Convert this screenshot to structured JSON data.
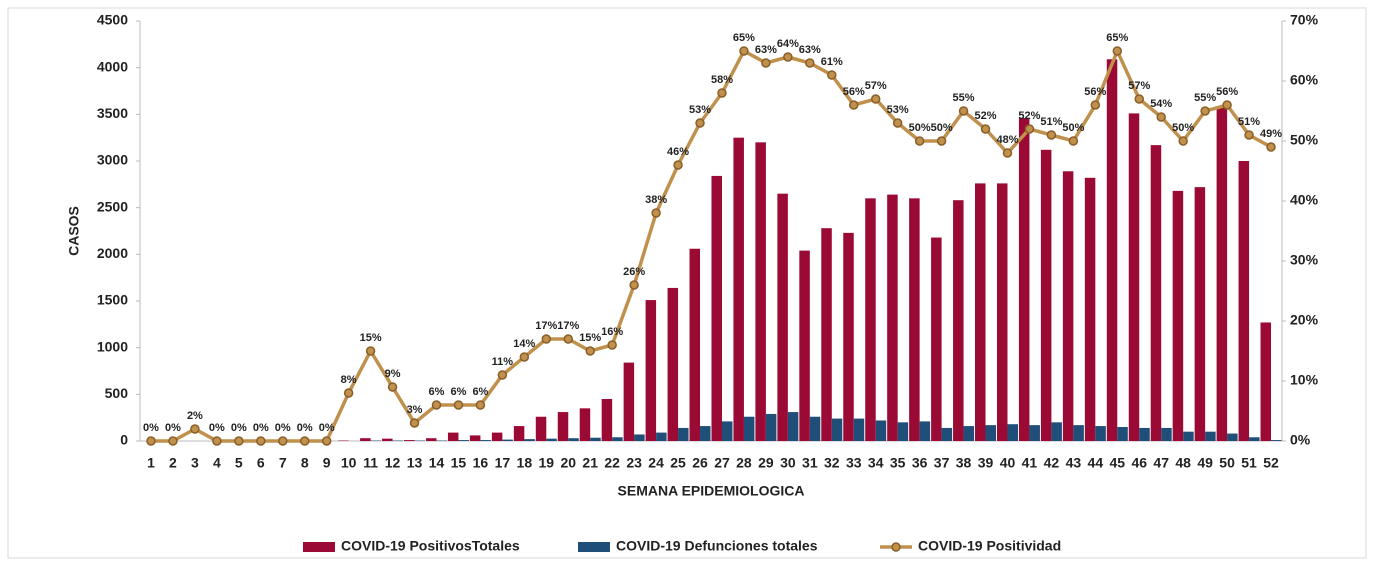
{
  "chart_data": {
    "type": "bar",
    "y_label": "CASOS",
    "x_label": "SEMANA EPIDEMIOLOGICA",
    "categories": [
      "1",
      "2",
      "3",
      "4",
      "5",
      "6",
      "7",
      "8",
      "9",
      "10",
      "11",
      "12",
      "13",
      "14",
      "15",
      "16",
      "17",
      "18",
      "19",
      "20",
      "21",
      "22",
      "23",
      "24",
      "25",
      "26",
      "27",
      "28",
      "29",
      "30",
      "31",
      "32",
      "33",
      "34",
      "35",
      "36",
      "37",
      "38",
      "39",
      "40",
      "41",
      "42",
      "43",
      "44",
      "45",
      "46",
      "47",
      "48",
      "49",
      "50",
      "51",
      "52"
    ],
    "series": [
      {
        "name": "COVID-19 PositivosTotales",
        "color": "#9b0a35",
        "values": [
          0,
          0,
          0,
          0,
          0,
          0,
          0,
          0,
          0,
          5,
          30,
          25,
          10,
          30,
          90,
          60,
          90,
          160,
          260,
          310,
          350,
          450,
          840,
          1510,
          1640,
          2060,
          2840,
          3250,
          3200,
          2650,
          2040,
          2280,
          2230,
          2600,
          2640,
          2600,
          2180,
          2580,
          2760,
          2760,
          3460,
          3120,
          2890,
          2820,
          4090,
          3510,
          3170,
          2680,
          2720,
          3570,
          3000,
          1270
        ]
      },
      {
        "name": "COVID-19 Defunciones totales",
        "color": "#1f4e79",
        "values": [
          0,
          0,
          0,
          0,
          0,
          0,
          0,
          0,
          0,
          0,
          5,
          5,
          5,
          5,
          10,
          10,
          15,
          20,
          25,
          30,
          35,
          40,
          70,
          90,
          140,
          160,
          210,
          260,
          290,
          310,
          260,
          240,
          240,
          220,
          200,
          210,
          140,
          160,
          170,
          180,
          170,
          200,
          170,
          160,
          150,
          140,
          140,
          100,
          100,
          80,
          40,
          10
        ]
      },
      {
        "name": "COVID-19 Positividad",
        "color": "#c0904d",
        "type": "line",
        "axis": "y2",
        "values": [
          0,
          0,
          2,
          0,
          0,
          0,
          0,
          0,
          0,
          8,
          15,
          9,
          3,
          6,
          6,
          6,
          11,
          14,
          17,
          17,
          15,
          16,
          26,
          38,
          46,
          53,
          58,
          65,
          63,
          64,
          63,
          61,
          56,
          57,
          53,
          50,
          50,
          55,
          52,
          48,
          52,
          51,
          50,
          56,
          65,
          57,
          54,
          50,
          55,
          56,
          51,
          49
        ],
        "value_labels": [
          "0%",
          "0%",
          "2%",
          "0%",
          "0%",
          "0%",
          "0%",
          "0%",
          "0%",
          "8%",
          "15%",
          "9%",
          "3%",
          "6%",
          "6%",
          "6%",
          "11%",
          "14%",
          "17%",
          "17%",
          "15%",
          "16%",
          "26%",
          "38%",
          "46%",
          "53%",
          "58%",
          "65%",
          "63%",
          "64%",
          "63%",
          "61%",
          "56%",
          "57%",
          "53%",
          "50%",
          "50%",
          "55%",
          "52%",
          "48%",
          "52%",
          "51%",
          "50%",
          "56%",
          "65%",
          "57%",
          "54%",
          "50%",
          "55%",
          "56%",
          "51%",
          "49%"
        ]
      }
    ],
    "ylim": [
      0,
      4500
    ],
    "yticks": [
      0,
      500,
      1000,
      1500,
      2000,
      2500,
      3000,
      3500,
      4000,
      4500
    ],
    "y2lim": [
      0,
      70
    ],
    "y2ticks": [
      {
        "value": 0,
        "label": "0%"
      },
      {
        "value": 10,
        "label": "10%"
      },
      {
        "value": 20,
        "label": "20%"
      },
      {
        "value": 30,
        "label": "30%"
      },
      {
        "value": 40,
        "label": "40%"
      },
      {
        "value": 50,
        "label": "50%"
      },
      {
        "value": 60,
        "label": "60%"
      },
      {
        "value": 70,
        "label": "70%"
      }
    ],
    "grid": false,
    "legend": "bottom"
  }
}
